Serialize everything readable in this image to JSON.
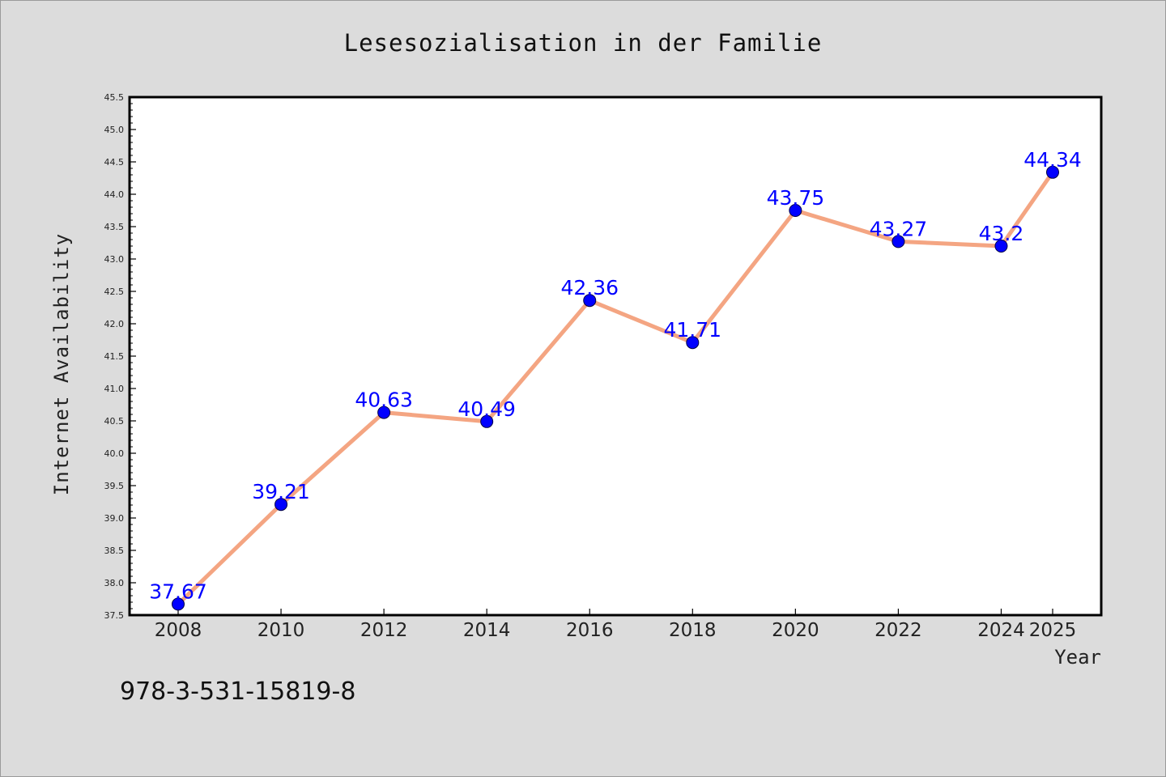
{
  "footer_text": "978-3-531-15819-8",
  "chart_data": {
    "type": "line",
    "title": "Lesesozialisation in der Familie",
    "xlabel": "Year",
    "ylabel": "Internet Availability",
    "x": [
      "2008",
      "2010",
      "2012",
      "2014",
      "2016",
      "2018",
      "2020",
      "2022",
      "2024",
      "2025"
    ],
    "series": [
      {
        "values": [
          37.67,
          39.21,
          40.63,
          40.49,
          42.36,
          41.71,
          43.75,
          43.27,
          43.2,
          44.34
        ],
        "labels": [
          "37.67",
          "39.21",
          "40.63",
          "40.49",
          "42.36",
          "41.71",
          "43.75",
          "43.27",
          "43.2",
          "44.34"
        ],
        "line_color": "#f4a582",
        "marker_color": "#0000ff",
        "label_color": "#0000ff"
      }
    ],
    "ylim": [
      37.5,
      45.5
    ],
    "yticks": [
      "37.5",
      "38.0",
      "38.5",
      "39.0",
      "39.5",
      "40.0",
      "40.5",
      "41.0",
      "41.5",
      "42.0",
      "42.5",
      "43.0",
      "43.5",
      "44.0",
      "44.5",
      "45.0",
      "45.5"
    ],
    "grid": false,
    "legend": "none"
  }
}
